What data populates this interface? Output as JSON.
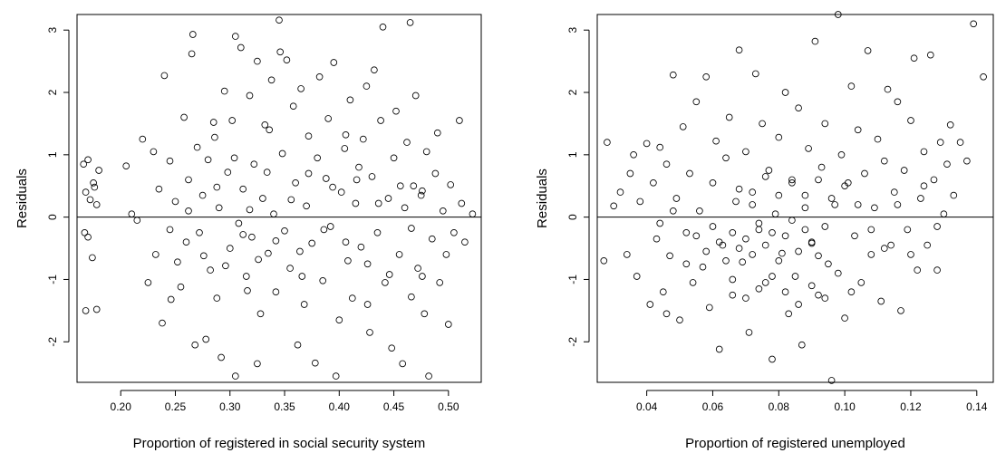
{
  "chart_data": [
    {
      "type": "scatter",
      "title": "",
      "xlabel": "Proportion of registered in social security system",
      "ylabel": "Residuals",
      "xlim": [
        0.16,
        0.53
      ],
      "ylim": [
        -2.65,
        3.25
      ],
      "xticks": [
        0.2,
        0.25,
        0.3,
        0.35,
        0.4,
        0.45,
        0.5
      ],
      "xtick_labels": [
        "0.20",
        "0.25",
        "0.30",
        "0.35",
        "0.40",
        "0.45",
        "0.50"
      ],
      "yticks": [
        -2,
        -1,
        0,
        1,
        2,
        3
      ],
      "ytick_labels": [
        "-2",
        "-1",
        "0",
        "1",
        "2",
        "3"
      ],
      "reference_line_y": 0,
      "grid": false,
      "marker": "open-circle",
      "points": [
        [
          0.166,
          0.85
        ],
        [
          0.17,
          0.92
        ],
        [
          0.168,
          0.4
        ],
        [
          0.172,
          0.28
        ],
        [
          0.175,
          0.55
        ],
        [
          0.176,
          0.48
        ],
        [
          0.178,
          0.2
        ],
        [
          0.174,
          -0.65
        ],
        [
          0.17,
          -0.32
        ],
        [
          0.167,
          -0.25
        ],
        [
          0.18,
          0.75
        ],
        [
          0.168,
          -1.5
        ],
        [
          0.178,
          -1.48
        ],
        [
          0.205,
          0.82
        ],
        [
          0.21,
          0.05
        ],
        [
          0.215,
          -0.05
        ],
        [
          0.22,
          1.25
        ],
        [
          0.225,
          -1.05
        ],
        [
          0.23,
          1.05
        ],
        [
          0.232,
          -0.6
        ],
        [
          0.235,
          0.45
        ],
        [
          0.24,
          2.27
        ],
        [
          0.238,
          -1.7
        ],
        [
          0.245,
          0.9
        ],
        [
          0.25,
          0.25
        ],
        [
          0.252,
          -0.72
        ],
        [
          0.255,
          -1.12
        ],
        [
          0.258,
          1.6
        ],
        [
          0.26,
          -0.4
        ],
        [
          0.262,
          0.1
        ],
        [
          0.265,
          2.62
        ],
        [
          0.266,
          2.93
        ],
        [
          0.268,
          -2.05
        ],
        [
          0.27,
          1.12
        ],
        [
          0.272,
          -0.25
        ],
        [
          0.275,
          0.35
        ],
        [
          0.278,
          -1.96
        ],
        [
          0.28,
          0.92
        ],
        [
          0.282,
          -0.85
        ],
        [
          0.285,
          1.52
        ],
        [
          0.288,
          -1.3
        ],
        [
          0.29,
          0.15
        ],
        [
          0.292,
          -2.25
        ],
        [
          0.295,
          2.02
        ],
        [
          0.298,
          0.72
        ],
        [
          0.3,
          -0.5
        ],
        [
          0.302,
          1.55
        ],
        [
          0.305,
          2.9
        ],
        [
          0.305,
          -2.55
        ],
        [
          0.308,
          -0.1
        ],
        [
          0.31,
          2.72
        ],
        [
          0.312,
          0.45
        ],
        [
          0.315,
          -0.95
        ],
        [
          0.318,
          1.95
        ],
        [
          0.32,
          -0.32
        ],
        [
          0.322,
          0.85
        ],
        [
          0.325,
          -2.35
        ],
        [
          0.325,
          2.5
        ],
        [
          0.328,
          -1.55
        ],
        [
          0.33,
          0.3
        ],
        [
          0.332,
          1.48
        ],
        [
          0.335,
          -0.58
        ],
        [
          0.338,
          2.2
        ],
        [
          0.34,
          0.05
        ],
        [
          0.342,
          -1.2
        ],
        [
          0.345,
          3.16
        ],
        [
          0.346,
          2.65
        ],
        [
          0.348,
          1.02
        ],
        [
          0.35,
          -0.22
        ],
        [
          0.352,
          2.52
        ],
        [
          0.355,
          -0.82
        ],
        [
          0.358,
          1.78
        ],
        [
          0.36,
          0.55
        ],
        [
          0.362,
          -2.05
        ],
        [
          0.365,
          2.06
        ],
        [
          0.368,
          -1.4
        ],
        [
          0.37,
          0.18
        ],
        [
          0.372,
          1.3
        ],
        [
          0.375,
          -0.42
        ],
        [
          0.378,
          -2.34
        ],
        [
          0.38,
          0.95
        ],
        [
          0.382,
          2.25
        ],
        [
          0.385,
          -1.02
        ],
        [
          0.388,
          0.62
        ],
        [
          0.39,
          1.58
        ],
        [
          0.392,
          -0.15
        ],
        [
          0.395,
          2.48
        ],
        [
          0.397,
          -2.55
        ],
        [
          0.4,
          -1.65
        ],
        [
          0.402,
          0.4
        ],
        [
          0.405,
          1.1
        ],
        [
          0.408,
          -0.7
        ],
        [
          0.41,
          1.88
        ],
        [
          0.412,
          -1.3
        ],
        [
          0.415,
          0.22
        ],
        [
          0.418,
          0.8
        ],
        [
          0.42,
          -0.48
        ],
        [
          0.422,
          1.25
        ],
        [
          0.425,
          2.1
        ],
        [
          0.428,
          -1.85
        ],
        [
          0.43,
          0.65
        ],
        [
          0.432,
          2.36
        ],
        [
          0.435,
          -0.25
        ],
        [
          0.438,
          1.55
        ],
        [
          0.44,
          3.05
        ],
        [
          0.442,
          -1.05
        ],
        [
          0.445,
          0.3
        ],
        [
          0.448,
          -2.1
        ],
        [
          0.45,
          0.95
        ],
        [
          0.452,
          1.7
        ],
        [
          0.455,
          -0.6
        ],
        [
          0.458,
          -2.35
        ],
        [
          0.46,
          0.15
        ],
        [
          0.462,
          1.2
        ],
        [
          0.465,
          3.12
        ],
        [
          0.466,
          -1.28
        ],
        [
          0.468,
          0.5
        ],
        [
          0.47,
          1.95
        ],
        [
          0.472,
          -0.82
        ],
        [
          0.475,
          0.35
        ],
        [
          0.478,
          -1.55
        ],
        [
          0.48,
          1.05
        ],
        [
          0.482,
          -2.55
        ],
        [
          0.485,
          -0.35
        ],
        [
          0.488,
          0.7
        ],
        [
          0.49,
          1.35
        ],
        [
          0.492,
          -1.05
        ],
        [
          0.495,
          0.1
        ],
        [
          0.498,
          -0.6
        ],
        [
          0.5,
          -1.72
        ],
        [
          0.502,
          0.52
        ],
        [
          0.505,
          -0.25
        ],
        [
          0.51,
          1.55
        ],
        [
          0.512,
          0.22
        ],
        [
          0.515,
          -0.4
        ],
        [
          0.522,
          0.05
        ],
        [
          0.245,
          -0.2
        ],
        [
          0.262,
          0.6
        ],
        [
          0.276,
          -0.62
        ],
        [
          0.288,
          0.48
        ],
        [
          0.296,
          -0.78
        ],
        [
          0.304,
          0.95
        ],
        [
          0.312,
          -0.28
        ],
        [
          0.318,
          0.12
        ],
        [
          0.326,
          -0.68
        ],
        [
          0.334,
          0.72
        ],
        [
          0.342,
          -0.38
        ],
        [
          0.356,
          0.28
        ],
        [
          0.364,
          -0.55
        ],
        [
          0.372,
          0.7
        ],
        [
          0.386,
          -0.2
        ],
        [
          0.394,
          0.48
        ],
        [
          0.406,
          -0.4
        ],
        [
          0.416,
          0.6
        ],
        [
          0.426,
          -0.75
        ],
        [
          0.436,
          0.22
        ],
        [
          0.446,
          -0.92
        ],
        [
          0.456,
          0.5
        ],
        [
          0.466,
          -0.18
        ],
        [
          0.476,
          0.42
        ],
        [
          0.286,
          1.28
        ],
        [
          0.336,
          1.4
        ],
        [
          0.406,
          1.32
        ],
        [
          0.246,
          -1.32
        ],
        [
          0.316,
          -1.18
        ],
        [
          0.366,
          -0.95
        ],
        [
          0.426,
          -1.4
        ],
        [
          0.476,
          -0.95
        ]
      ]
    },
    {
      "type": "scatter",
      "title": "",
      "xlabel": "Proportion of registered unemployed",
      "ylabel": "Residuals",
      "xlim": [
        0.025,
        0.145
      ],
      "ylim": [
        -2.65,
        3.25
      ],
      "xticks": [
        0.04,
        0.06,
        0.08,
        0.1,
        0.12,
        0.14
      ],
      "xtick_labels": [
        "0.04",
        "0.06",
        "0.08",
        "0.10",
        "0.12",
        "0.14"
      ],
      "yticks": [
        -2,
        -1,
        0,
        1,
        2,
        3
      ],
      "ytick_labels": [
        "-2",
        "-1",
        "0",
        "1",
        "2",
        "3"
      ],
      "reference_line_y": 0,
      "grid": false,
      "marker": "open-circle",
      "points": [
        [
          0.027,
          -0.7
        ],
        [
          0.028,
          1.2
        ],
        [
          0.03,
          0.18
        ],
        [
          0.032,
          0.4
        ],
        [
          0.034,
          -0.6
        ],
        [
          0.035,
          0.7
        ],
        [
          0.036,
          1.0
        ],
        [
          0.037,
          -0.95
        ],
        [
          0.038,
          0.25
        ],
        [
          0.04,
          1.18
        ],
        [
          0.041,
          -1.4
        ],
        [
          0.042,
          0.55
        ],
        [
          0.043,
          -0.35
        ],
        [
          0.044,
          1.12
        ],
        [
          0.045,
          -1.2
        ],
        [
          0.046,
          0.85
        ],
        [
          0.047,
          -0.62
        ],
        [
          0.048,
          2.28
        ],
        [
          0.049,
          0.3
        ],
        [
          0.05,
          -1.65
        ],
        [
          0.051,
          1.45
        ],
        [
          0.052,
          -0.25
        ],
        [
          0.053,
          0.7
        ],
        [
          0.054,
          -1.05
        ],
        [
          0.055,
          1.85
        ],
        [
          0.056,
          0.1
        ],
        [
          0.057,
          -0.8
        ],
        [
          0.058,
          2.25
        ],
        [
          0.059,
          -1.45
        ],
        [
          0.06,
          0.55
        ],
        [
          0.061,
          1.22
        ],
        [
          0.062,
          -2.12
        ],
        [
          0.063,
          -0.45
        ],
        [
          0.064,
          0.95
        ],
        [
          0.065,
          1.6
        ],
        [
          0.066,
          -1.25
        ],
        [
          0.067,
          0.25
        ],
        [
          0.068,
          2.68
        ],
        [
          0.069,
          -0.72
        ],
        [
          0.07,
          1.05
        ],
        [
          0.071,
          -1.85
        ],
        [
          0.072,
          0.4
        ],
        [
          0.073,
          2.3
        ],
        [
          0.074,
          -0.2
        ],
        [
          0.075,
          1.5
        ],
        [
          0.076,
          -1.05
        ],
        [
          0.077,
          0.75
        ],
        [
          0.078,
          -2.28
        ],
        [
          0.079,
          0.05
        ],
        [
          0.08,
          1.28
        ],
        [
          0.081,
          -0.58
        ],
        [
          0.082,
          2.0
        ],
        [
          0.083,
          -1.55
        ],
        [
          0.084,
          0.6
        ],
        [
          0.085,
          -0.95
        ],
        [
          0.086,
          1.75
        ],
        [
          0.087,
          -2.05
        ],
        [
          0.088,
          0.35
        ],
        [
          0.089,
          1.1
        ],
        [
          0.09,
          -0.4
        ],
        [
          0.091,
          2.82
        ],
        [
          0.092,
          -1.25
        ],
        [
          0.093,
          0.8
        ],
        [
          0.094,
          1.5
        ],
        [
          0.095,
          -0.75
        ],
        [
          0.096,
          -2.62
        ],
        [
          0.097,
          0.2
        ],
        [
          0.098,
          3.25
        ],
        [
          0.099,
          1.0
        ],
        [
          0.1,
          -1.62
        ],
        [
          0.101,
          0.55
        ],
        [
          0.102,
          2.1
        ],
        [
          0.103,
          -0.3
        ],
        [
          0.104,
          1.4
        ],
        [
          0.105,
          -1.05
        ],
        [
          0.106,
          0.7
        ],
        [
          0.107,
          2.67
        ],
        [
          0.108,
          -0.6
        ],
        [
          0.109,
          0.15
        ],
        [
          0.11,
          1.25
        ],
        [
          0.111,
          -1.35
        ],
        [
          0.112,
          0.9
        ],
        [
          0.113,
          2.05
        ],
        [
          0.114,
          -0.45
        ],
        [
          0.115,
          0.4
        ],
        [
          0.116,
          1.85
        ],
        [
          0.117,
          -1.5
        ],
        [
          0.118,
          0.75
        ],
        [
          0.119,
          -0.2
        ],
        [
          0.12,
          1.55
        ],
        [
          0.121,
          2.55
        ],
        [
          0.122,
          -0.85
        ],
        [
          0.123,
          0.3
        ],
        [
          0.124,
          1.05
        ],
        [
          0.125,
          -0.45
        ],
        [
          0.126,
          2.6
        ],
        [
          0.127,
          0.6
        ],
        [
          0.128,
          -0.15
        ],
        [
          0.129,
          1.2
        ],
        [
          0.13,
          0.05
        ],
        [
          0.131,
          0.85
        ],
        [
          0.132,
          1.48
        ],
        [
          0.133,
          0.35
        ],
        [
          0.135,
          1.2
        ],
        [
          0.137,
          0.9
        ],
        [
          0.139,
          3.1
        ],
        [
          0.142,
          2.25
        ],
        [
          0.055,
          -0.3
        ],
        [
          0.058,
          -0.55
        ],
        [
          0.06,
          -0.15
        ],
        [
          0.062,
          -0.4
        ],
        [
          0.064,
          -0.7
        ],
        [
          0.066,
          -0.25
        ],
        [
          0.068,
          -0.5
        ],
        [
          0.07,
          -0.35
        ],
        [
          0.072,
          -0.6
        ],
        [
          0.074,
          -0.1
        ],
        [
          0.076,
          -0.45
        ],
        [
          0.078,
          -0.25
        ],
        [
          0.08,
          -0.7
        ],
        [
          0.082,
          -0.3
        ],
        [
          0.084,
          -0.05
        ],
        [
          0.086,
          -0.55
        ],
        [
          0.088,
          -0.2
        ],
        [
          0.09,
          -0.42
        ],
        [
          0.092,
          -0.62
        ],
        [
          0.094,
          -0.15
        ],
        [
          0.068,
          0.45
        ],
        [
          0.072,
          0.2
        ],
        [
          0.076,
          0.65
        ],
        [
          0.08,
          0.35
        ],
        [
          0.084,
          0.55
        ],
        [
          0.088,
          0.15
        ],
        [
          0.092,
          0.6
        ],
        [
          0.096,
          0.3
        ],
        [
          0.1,
          0.5
        ],
        [
          0.104,
          0.2
        ],
        [
          0.066,
          -1.0
        ],
        [
          0.07,
          -1.3
        ],
        [
          0.074,
          -1.15
        ],
        [
          0.078,
          -0.95
        ],
        [
          0.082,
          -1.2
        ],
        [
          0.086,
          -1.4
        ],
        [
          0.09,
          -1.1
        ],
        [
          0.094,
          -1.3
        ],
        [
          0.098,
          -0.9
        ],
        [
          0.102,
          -1.2
        ],
        [
          0.108,
          -0.2
        ],
        [
          0.112,
          -0.5
        ],
        [
          0.116,
          0.2
        ],
        [
          0.12,
          -0.6
        ],
        [
          0.124,
          0.5
        ],
        [
          0.128,
          -0.85
        ],
        [
          0.044,
          -0.1
        ],
        [
          0.048,
          0.1
        ],
        [
          0.052,
          -0.75
        ],
        [
          0.046,
          -1.55
        ]
      ]
    }
  ]
}
